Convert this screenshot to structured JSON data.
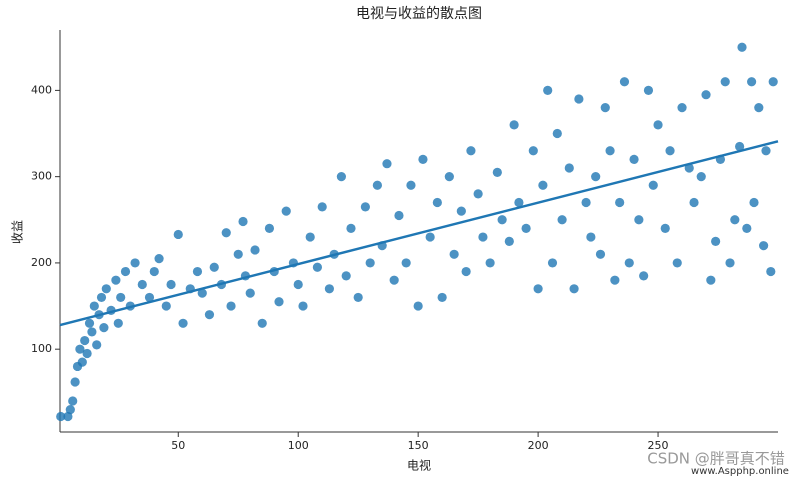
{
  "chart_data": {
    "type": "scatter",
    "title": "电视与收益的散点图",
    "xlabel": "电视",
    "ylabel": "收益",
    "xlim": [
      0.7,
      300
    ],
    "ylim": [
      4,
      470
    ],
    "xticks": [
      50,
      100,
      150,
      200,
      250
    ],
    "yticks": [
      100,
      200,
      300,
      400
    ],
    "series": [
      {
        "color": "#1f77b4",
        "x": [
          1,
          4,
          6,
          5,
          7,
          8,
          9,
          10,
          11,
          12,
          13,
          14,
          15,
          16,
          17,
          18,
          19,
          20,
          22,
          24,
          25,
          26,
          28,
          30,
          32,
          35,
          38,
          40,
          42,
          45,
          47,
          50,
          52,
          55,
          58,
          60,
          63,
          65,
          68,
          70,
          72,
          75,
          77,
          78,
          80,
          82,
          85,
          88,
          90,
          92,
          95,
          98,
          100,
          102,
          105,
          108,
          110,
          113,
          115,
          118,
          120,
          122,
          125,
          128,
          130,
          133,
          135,
          137,
          140,
          142,
          145,
          147,
          150,
          152,
          155,
          158,
          160,
          163,
          165,
          168,
          170,
          172,
          175,
          177,
          180,
          183,
          185,
          188,
          190,
          192,
          195,
          198,
          200,
          202,
          204,
          206,
          208,
          210,
          213,
          215,
          217,
          220,
          222,
          224,
          226,
          228,
          230,
          232,
          234,
          236,
          238,
          240,
          242,
          244,
          246,
          248,
          250,
          253,
          255,
          258,
          260,
          263,
          265,
          268,
          270,
          272,
          274,
          276,
          278,
          280,
          282,
          284,
          285,
          287,
          289,
          290,
          292,
          294,
          295,
          297,
          298
        ],
        "y": [
          22,
          22,
          40,
          30,
          62,
          80,
          100,
          85,
          110,
          95,
          130,
          120,
          150,
          105,
          140,
          160,
          125,
          170,
          145,
          180,
          130,
          160,
          190,
          150,
          200,
          175,
          160,
          190,
          205,
          150,
          175,
          233,
          130,
          170,
          190,
          165,
          140,
          195,
          175,
          235,
          150,
          210,
          248,
          185,
          165,
          215,
          130,
          240,
          190,
          155,
          260,
          200,
          175,
          150,
          230,
          195,
          265,
          170,
          210,
          300,
          185,
          240,
          160,
          265,
          200,
          290,
          220,
          315,
          180,
          255,
          200,
          290,
          150,
          320,
          230,
          270,
          160,
          300,
          210,
          260,
          190,
          330,
          280,
          230,
          200,
          305,
          250,
          225,
          360,
          270,
          240,
          330,
          170,
          290,
          400,
          200,
          350,
          250,
          310,
          170,
          390,
          270,
          230,
          300,
          210,
          380,
          330,
          180,
          270,
          410,
          200,
          320,
          250,
          185,
          400,
          290,
          360,
          240,
          330,
          200,
          380,
          310,
          270,
          300,
          395,
          180,
          225,
          320,
          410,
          200,
          250,
          335,
          450,
          240,
          410,
          270,
          380,
          220,
          330,
          190,
          410
        ]
      }
    ],
    "regression": {
      "color": "#1f77b4",
      "x": [
        0.7,
        300
      ],
      "y": [
        128,
        341
      ]
    },
    "watermark": [
      "CSDN @胖哥真不错",
      "www.Aspphp.online"
    ]
  }
}
